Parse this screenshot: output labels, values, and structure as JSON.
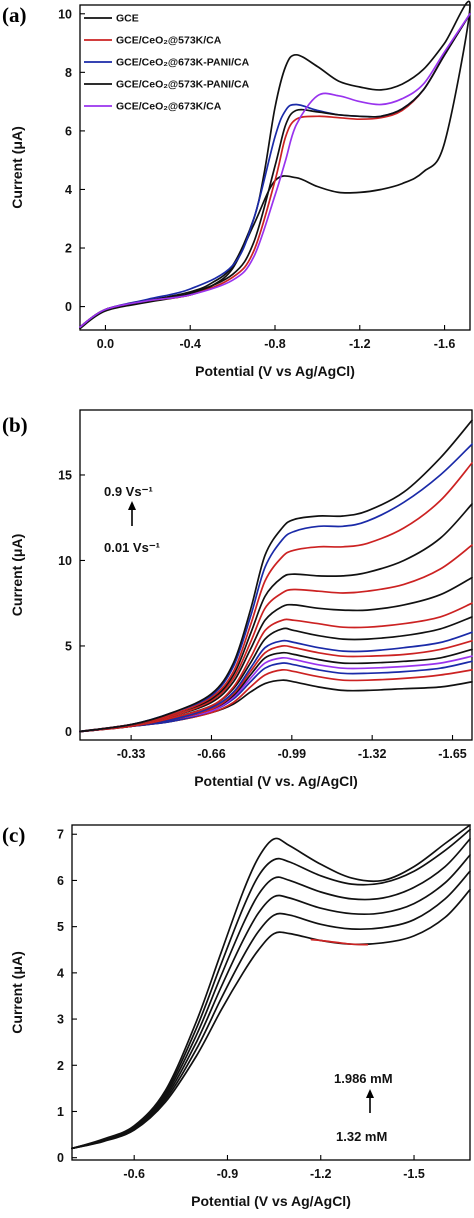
{
  "chart_data": [
    {
      "panel_label": "(a)",
      "type": "line",
      "xlabel": "Potential (V vs Ag/AgCl)",
      "ylabel": "Current (μA)",
      "x_reversed": true,
      "xlim": [
        0.12,
        -1.72
      ],
      "ylim": [
        -0.8,
        10.3
      ],
      "x_ticks": [
        "0.0",
        "-0.4",
        "-0.8",
        "-1.2",
        "-1.6"
      ],
      "y_ticks": [
        "0",
        "2",
        "4",
        "6",
        "8",
        "10"
      ],
      "legend_placement": "top-left",
      "colors": {
        "GCE": "#111111",
        "red": "#cc2222",
        "blue": "#1a2aa8",
        "purple": "#9933ee"
      },
      "series": [
        {
          "name": "GCE",
          "color": "#111111",
          "x": [
            0.12,
            0.0,
            -0.2,
            -0.4,
            -0.5,
            -0.6,
            -0.7,
            -0.75,
            -0.8,
            -0.85,
            -0.9,
            -1.0,
            -1.1,
            -1.2,
            -1.3,
            -1.4,
            -1.5,
            -1.6,
            -1.72,
            -1.6,
            -1.5,
            -1.4,
            -1.3,
            -1.2,
            -1.1,
            -1.0,
            -0.9,
            -0.8,
            -0.7,
            -0.6,
            -0.5,
            -0.4,
            -0.2,
            0.0,
            0.12
          ],
          "y": [
            -0.7,
            -0.1,
            0.2,
            0.5,
            0.8,
            1.4,
            3.0,
            4.6,
            6.8,
            8.2,
            8.6,
            8.2,
            7.7,
            7.5,
            7.4,
            7.6,
            8.1,
            9.0,
            10.3,
            5.6,
            4.6,
            4.2,
            4.0,
            3.9,
            3.9,
            4.1,
            4.4,
            4.3,
            2.8,
            1.3,
            0.7,
            0.4,
            0.15,
            -0.15,
            -0.75
          ]
        },
        {
          "name": "GCE/CeO₂@573K/CA",
          "color": "#cc2222",
          "x": [
            0.12,
            0.0,
            -0.2,
            -0.4,
            -0.6,
            -0.7,
            -0.8,
            -0.85,
            -0.9,
            -1.0,
            -1.1,
            -1.2,
            -1.3,
            -1.4,
            -1.5,
            -1.6,
            -1.72
          ],
          "y": [
            -0.7,
            -0.1,
            0.2,
            0.4,
            1.0,
            1.9,
            4.3,
            5.8,
            6.4,
            6.5,
            6.45,
            6.4,
            6.45,
            6.7,
            7.4,
            8.6,
            10.0
          ]
        },
        {
          "name": "GCE/CeO₂@673K-PANI/CA",
          "color": "#1a2aa8",
          "x": [
            0.12,
            0.0,
            -0.2,
            -0.4,
            -0.6,
            -0.7,
            -0.8,
            -0.85,
            -0.9,
            -1.0,
            -1.1,
            -1.2,
            -1.3,
            -1.4,
            -1.5,
            -1.6,
            -1.72
          ],
          "y": [
            -0.7,
            -0.1,
            0.25,
            0.6,
            1.4,
            3.0,
            5.8,
            6.7,
            6.9,
            6.7,
            6.55,
            6.5,
            6.5,
            6.75,
            7.4,
            8.6,
            10.0
          ]
        },
        {
          "name": "GCE/CeO₂@573K-PANI/CA",
          "color": "#111111",
          "x": [
            0.12,
            0.0,
            -0.2,
            -0.4,
            -0.6,
            -0.7,
            -0.8,
            -0.85,
            -0.9,
            -1.0,
            -1.1,
            -1.2,
            -1.3,
            -1.4,
            -1.5,
            -1.6,
            -1.72
          ],
          "y": [
            -0.7,
            -0.1,
            0.2,
            0.45,
            1.1,
            2.2,
            4.8,
            6.2,
            6.7,
            6.65,
            6.55,
            6.5,
            6.5,
            6.75,
            7.4,
            8.6,
            10.0
          ]
        },
        {
          "name": "GCE/CeO₂@673K/CA",
          "color": "#9933ee",
          "x": [
            0.12,
            0.0,
            -0.2,
            -0.4,
            -0.6,
            -0.7,
            -0.8,
            -0.85,
            -0.9,
            -1.0,
            -1.1,
            -1.2,
            -1.3,
            -1.4,
            -1.5,
            -1.6,
            -1.72
          ],
          "y": [
            -0.7,
            -0.1,
            0.2,
            0.4,
            0.9,
            1.7,
            3.8,
            5.0,
            6.2,
            7.2,
            7.2,
            7.0,
            6.9,
            7.1,
            7.6,
            8.7,
            10.0
          ]
        }
      ],
      "legend": [
        {
          "label": "GCE",
          "color": "#111111"
        },
        {
          "label": "GCE/CeO₂@573K/CA",
          "color": "#cc2222"
        },
        {
          "label": "GCE/CeO₂@673K-PANI/CA",
          "color": "#1a2aa8"
        },
        {
          "label": "GCE/CeO₂@573K-PANI/CA",
          "color": "#111111"
        },
        {
          "label": "GCE/CeO₂@673K/CA",
          "color": "#9933ee"
        }
      ]
    },
    {
      "panel_label": "(b)",
      "type": "line",
      "xlabel": "Potential (V vs. Ag/AgCl)",
      "ylabel": "Current (μA)",
      "x_reversed": true,
      "xlim": [
        -0.12,
        -1.73
      ],
      "ylim": [
        -0.5,
        18.8
      ],
      "x_ticks": [
        "-0.33",
        "-0.66",
        "-0.99",
        "-1.32",
        "-1.65"
      ],
      "y_ticks": [
        "0",
        "5",
        "10",
        "15"
      ],
      "annotation": {
        "top": "0.9 Vs⁻¹",
        "bottom": "0.01 Vs⁻¹"
      },
      "x": [
        -0.12,
        -0.33,
        -0.5,
        -0.66,
        -0.75,
        -0.82,
        -0.88,
        -0.95,
        -1.0,
        -1.1,
        -1.2,
        -1.3,
        -1.45,
        -1.6,
        -1.73
      ],
      "series": [
        {
          "color": "#111111",
          "values": [
            0.0,
            0.3,
            0.6,
            1.1,
            1.6,
            2.3,
            2.8,
            3.0,
            2.9,
            2.6,
            2.4,
            2.4,
            2.5,
            2.6,
            2.9
          ]
        },
        {
          "color": "#cc2222",
          "values": [
            0.0,
            0.3,
            0.6,
            1.1,
            1.7,
            2.6,
            3.3,
            3.6,
            3.5,
            3.2,
            3.0,
            3.0,
            3.1,
            3.3,
            3.6
          ]
        },
        {
          "color": "#1a2aa8",
          "values": [
            0.0,
            0.3,
            0.6,
            1.2,
            1.9,
            2.9,
            3.7,
            4.0,
            3.9,
            3.6,
            3.4,
            3.4,
            3.5,
            3.7,
            4.1
          ]
        },
        {
          "color": "#9933ee",
          "values": [
            0.0,
            0.3,
            0.7,
            1.2,
            2.0,
            3.1,
            4.0,
            4.3,
            4.2,
            3.9,
            3.7,
            3.7,
            3.8,
            4.0,
            4.4
          ]
        },
        {
          "color": "#111111",
          "values": [
            0.0,
            0.3,
            0.7,
            1.3,
            2.1,
            3.3,
            4.3,
            4.6,
            4.5,
            4.2,
            4.0,
            4.0,
            4.1,
            4.3,
            4.8
          ]
        },
        {
          "color": "#cc2222",
          "values": [
            0.0,
            0.3,
            0.7,
            1.3,
            2.2,
            3.5,
            4.6,
            5.0,
            4.9,
            4.6,
            4.4,
            4.4,
            4.5,
            4.8,
            5.3
          ]
        },
        {
          "color": "#1a2aa8",
          "values": [
            0.0,
            0.3,
            0.7,
            1.4,
            2.3,
            3.7,
            4.9,
            5.3,
            5.2,
            4.9,
            4.7,
            4.7,
            4.9,
            5.2,
            5.8
          ]
        },
        {
          "color": "#111111",
          "values": [
            0.0,
            0.3,
            0.8,
            1.5,
            2.5,
            4.0,
            5.4,
            6.0,
            5.9,
            5.6,
            5.4,
            5.4,
            5.6,
            6.0,
            6.7
          ]
        },
        {
          "color": "#cc2222",
          "values": [
            0.0,
            0.3,
            0.8,
            1.5,
            2.6,
            4.3,
            5.9,
            6.5,
            6.5,
            6.3,
            6.1,
            6.1,
            6.3,
            6.7,
            7.5
          ]
        },
        {
          "color": "#111111",
          "values": [
            0.0,
            0.4,
            0.9,
            1.7,
            2.9,
            4.8,
            6.5,
            7.3,
            7.4,
            7.2,
            7.1,
            7.1,
            7.4,
            8.0,
            9.0
          ]
        },
        {
          "color": "#cc2222",
          "values": [
            0.0,
            0.4,
            0.9,
            1.8,
            3.1,
            5.2,
            7.2,
            8.1,
            8.3,
            8.2,
            8.1,
            8.2,
            8.6,
            9.5,
            10.9
          ]
        },
        {
          "color": "#111111",
          "values": [
            0.0,
            0.4,
            1.0,
            1.9,
            3.3,
            5.7,
            7.9,
            9.0,
            9.2,
            9.1,
            9.1,
            9.3,
            10.0,
            11.3,
            13.3
          ]
        },
        {
          "color": "#cc2222",
          "values": [
            0.0,
            0.4,
            1.0,
            2.0,
            3.5,
            6.2,
            8.8,
            10.2,
            10.6,
            10.8,
            10.8,
            11.0,
            11.9,
            13.5,
            15.7
          ]
        },
        {
          "color": "#1a2aa8",
          "values": [
            0.0,
            0.4,
            1.1,
            2.1,
            3.8,
            6.7,
            9.6,
            11.2,
            11.7,
            12.0,
            12.0,
            12.3,
            13.4,
            15.0,
            16.8
          ]
        },
        {
          "color": "#111111",
          "values": [
            0.0,
            0.4,
            1.1,
            2.2,
            4.0,
            7.1,
            10.3,
            11.9,
            12.4,
            12.6,
            12.6,
            12.9,
            14.0,
            16.0,
            18.2
          ]
        }
      ]
    },
    {
      "panel_label": "(c)",
      "type": "line",
      "xlabel": "Potential (V vs Ag/AgCl)",
      "ylabel": "Current (μA)",
      "x_reversed": true,
      "xlim": [
        -0.4,
        -1.68
      ],
      "ylim": [
        -0.05,
        7.2
      ],
      "x_ticks": [
        "-0.6",
        "-0.9",
        "-1.2",
        "-1.5"
      ],
      "y_ticks": [
        "0",
        "1",
        "2",
        "3",
        "4",
        "5",
        "6",
        "7"
      ],
      "annotation": {
        "top": "1.986 mM",
        "bottom": "1.32 mM"
      },
      "x": [
        -0.4,
        -0.5,
        -0.6,
        -0.7,
        -0.8,
        -0.88,
        -0.95,
        -1.0,
        -1.05,
        -1.1,
        -1.2,
        -1.3,
        -1.4,
        -1.5,
        -1.6,
        -1.68
      ],
      "series": [
        {
          "color": "#111111",
          "values": [
            0.2,
            0.35,
            0.6,
            1.2,
            2.2,
            3.2,
            4.0,
            4.5,
            4.85,
            4.85,
            4.7,
            4.62,
            4.65,
            4.8,
            5.2,
            5.8
          ]
        },
        {
          "color": "#111111",
          "values": [
            0.2,
            0.36,
            0.62,
            1.25,
            2.35,
            3.45,
            4.35,
            4.9,
            5.25,
            5.25,
            5.05,
            4.95,
            4.98,
            5.15,
            5.6,
            6.2
          ]
        },
        {
          "color": "#111111",
          "values": [
            0.2,
            0.37,
            0.63,
            1.3,
            2.5,
            3.7,
            4.7,
            5.3,
            5.65,
            5.62,
            5.4,
            5.28,
            5.3,
            5.5,
            5.95,
            6.55
          ]
        },
        {
          "color": "#111111",
          "values": [
            0.2,
            0.38,
            0.65,
            1.35,
            2.65,
            3.95,
            5.05,
            5.7,
            6.05,
            6.0,
            5.75,
            5.6,
            5.62,
            5.85,
            6.3,
            6.9
          ]
        },
        {
          "color": "#111111",
          "values": [
            0.2,
            0.39,
            0.67,
            1.4,
            2.8,
            4.2,
            5.4,
            6.1,
            6.45,
            6.4,
            6.1,
            5.92,
            5.95,
            6.2,
            6.65,
            7.1
          ]
        },
        {
          "color": "#111111",
          "values": [
            0.2,
            0.4,
            0.69,
            1.45,
            2.95,
            4.45,
            5.75,
            6.5,
            6.9,
            6.75,
            6.35,
            6.05,
            6.0,
            6.3,
            6.8,
            7.2
          ]
        }
      ],
      "highlight": {
        "color": "#cc2222",
        "x": [
          -1.17,
          -1.2,
          -1.25,
          -1.3,
          -1.35
        ],
        "values": [
          4.72,
          4.7,
          4.66,
          4.62,
          4.61
        ]
      }
    }
  ]
}
